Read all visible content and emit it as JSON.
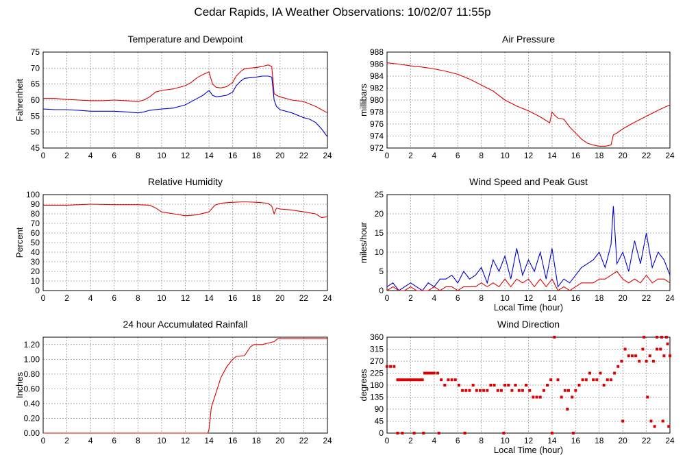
{
  "page_title": "Cedar Rapids, IA Weather Observations: 10/02/07 11:55p",
  "chart_data": [
    {
      "id": "temp",
      "type": "line",
      "title": "Temperature and Dewpoint",
      "xlabel": "",
      "ylabel": "Fahrenheit",
      "xlim": [
        0,
        24
      ],
      "ylim": [
        45,
        75
      ],
      "xticks": [
        0,
        2,
        4,
        6,
        8,
        10,
        12,
        14,
        16,
        18,
        20,
        22,
        24
      ],
      "yticks": [
        45,
        50,
        55,
        60,
        65,
        70,
        75
      ],
      "ytick_labels": [
        "45",
        "50",
        "55",
        "60",
        "65",
        "70",
        "75"
      ],
      "grid": true,
      "series": [
        {
          "color": "#dd0000",
          "x": [
            0,
            1,
            2,
            3,
            4,
            5,
            6,
            7,
            8,
            8.5,
            9,
            9.5,
            10,
            11,
            12,
            12.5,
            13,
            13.5,
            14,
            14.3,
            14.6,
            15,
            15.5,
            16,
            16.3,
            16.7,
            17,
            17.5,
            18,
            18.5,
            19,
            19.3,
            19.5,
            19.7,
            20,
            21,
            22,
            23,
            24
          ],
          "y": [
            60.5,
            60.5,
            60.2,
            60,
            59.8,
            59.8,
            60,
            59.8,
            59.5,
            60,
            61,
            62.5,
            63,
            63.5,
            64.5,
            65.5,
            67,
            68,
            68.8,
            65,
            64,
            63.8,
            64.2,
            65.5,
            67.5,
            69,
            69.8,
            70,
            70.2,
            70.5,
            71,
            70.5,
            62,
            61.5,
            61,
            60,
            59.5,
            58,
            56
          ]
        },
        {
          "color": "#0000cc",
          "x": [
            0,
            1,
            2,
            3,
            4,
            5,
            6,
            7,
            8,
            8.5,
            9,
            10,
            11,
            12,
            12.5,
            13,
            13.5,
            14,
            14.3,
            14.6,
            15,
            15.5,
            16,
            16.3,
            16.7,
            17,
            17.5,
            18,
            18.5,
            19,
            19.3,
            19.5,
            19.7,
            20,
            21,
            22,
            22.5,
            23,
            23.5,
            24
          ],
          "y": [
            57.2,
            57,
            57,
            56.8,
            56.5,
            56.5,
            56.5,
            56.3,
            56,
            56.3,
            56.8,
            57.2,
            57.5,
            58.5,
            59.5,
            60.5,
            61.5,
            63,
            61.5,
            61,
            61.2,
            61.5,
            62.5,
            64.5,
            66,
            66.8,
            67,
            67.2,
            67.5,
            67.5,
            67.2,
            60,
            58,
            57,
            56,
            54.5,
            54,
            53,
            51,
            48.5
          ]
        }
      ]
    },
    {
      "id": "pressure",
      "type": "line",
      "title": "Air Pressure",
      "xlabel": "",
      "ylabel": "millibars",
      "xlim": [
        0,
        24
      ],
      "ylim": [
        972,
        988
      ],
      "xticks": [
        0,
        2,
        4,
        6,
        8,
        10,
        12,
        14,
        16,
        18,
        20,
        22,
        24
      ],
      "yticks": [
        972,
        974,
        976,
        978,
        980,
        982,
        984,
        986,
        988
      ],
      "ytick_labels": [
        "972",
        "974",
        "976",
        "978",
        "980",
        "982",
        "984",
        "986",
        "988"
      ],
      "grid": true,
      "series": [
        {
          "color": "#dd0000",
          "x": [
            0,
            1,
            2,
            3,
            4,
            5,
            6,
            7,
            8,
            9,
            10,
            11,
            12,
            13,
            13.8,
            14,
            14.2,
            14.5,
            15,
            15.5,
            16,
            16.5,
            17,
            17.5,
            18,
            18.5,
            19,
            19.2,
            19.5,
            20,
            21,
            22,
            23,
            24
          ],
          "y": [
            986.2,
            986,
            985.7,
            985.5,
            985.2,
            984.8,
            984.3,
            983.5,
            982.5,
            981.5,
            980,
            979,
            978.2,
            977.2,
            976.2,
            978,
            977.5,
            977,
            976.8,
            975.5,
            974.5,
            973.5,
            972.8,
            972.5,
            972.3,
            972.3,
            972.5,
            974.2,
            974.5,
            975.2,
            976.3,
            977.3,
            978.3,
            979.2
          ]
        }
      ]
    },
    {
      "id": "rh",
      "type": "line",
      "title": "Relative Humidity",
      "xlabel": "",
      "ylabel": "Percent",
      "xlim": [
        0,
        24
      ],
      "ylim": [
        0,
        100
      ],
      "xticks": [
        0,
        2,
        4,
        6,
        8,
        10,
        12,
        14,
        16,
        18,
        20,
        22,
        24
      ],
      "yticks": [
        0,
        10,
        20,
        30,
        40,
        50,
        60,
        70,
        80,
        90,
        100
      ],
      "ytick_labels": [
        "0",
        "10",
        "20",
        "30",
        "40",
        "50",
        "60",
        "70",
        "80",
        "90",
        "100"
      ],
      "grid": true,
      "series": [
        {
          "color": "#dd0000",
          "x": [
            0,
            2,
            4,
            6,
            8,
            9,
            9.5,
            10,
            11,
            12,
            13,
            14,
            14.5,
            15,
            16,
            17,
            18,
            19,
            19.3,
            19.5,
            19.7,
            20,
            21,
            22,
            23,
            23.5,
            24
          ],
          "y": [
            89,
            89,
            90,
            89.5,
            89.5,
            89,
            86,
            82,
            80,
            78,
            79,
            82,
            89,
            91,
            92,
            92.5,
            92,
            91,
            88,
            80,
            86,
            85,
            84,
            82,
            80,
            76,
            77
          ]
        }
      ]
    },
    {
      "id": "wind",
      "type": "line",
      "title": "Wind Speed and Peak Gust",
      "xlabel": "Local Time (hour)",
      "ylabel": "miles/hour",
      "xlim": [
        0,
        24
      ],
      "ylim": [
        0,
        25
      ],
      "xticks": [
        0,
        2,
        4,
        6,
        8,
        10,
        12,
        14,
        16,
        18,
        20,
        22,
        24
      ],
      "yticks": [
        0,
        5,
        10,
        15,
        20,
        25
      ],
      "ytick_labels": [
        "0",
        "5",
        "10",
        "15",
        "20",
        "25"
      ],
      "grid": true,
      "series": [
        {
          "color": "#0000cc",
          "x": [
            0,
            0.5,
            1,
            1.5,
            2,
            2.5,
            3,
            3.5,
            4,
            4.5,
            5,
            5.5,
            6,
            6.5,
            7,
            7.5,
            8,
            8.5,
            9,
            9.5,
            10,
            10.5,
            11,
            11.5,
            12,
            12.5,
            13,
            13.5,
            14,
            14.5,
            15,
            15.5,
            16,
            16.5,
            17,
            17.5,
            18,
            18.5,
            19,
            19.2,
            19.5,
            20,
            20.5,
            21,
            21.5,
            22,
            22.5,
            23,
            23.5,
            24
          ],
          "y": [
            1,
            2,
            0,
            1,
            2,
            1,
            0,
            2,
            1,
            3,
            3,
            4,
            2,
            5,
            3,
            4,
            6,
            2,
            8,
            5,
            9,
            3,
            11,
            4,
            8,
            5,
            10,
            3,
            11,
            1,
            3,
            2,
            4,
            6,
            7,
            8,
            10,
            6,
            12,
            22,
            7,
            10,
            5,
            13,
            7,
            15,
            6,
            10,
            8,
            4
          ]
        },
        {
          "color": "#dd0000",
          "x": [
            0,
            0.5,
            1,
            1.5,
            2,
            2.5,
            3,
            3.5,
            4,
            4.5,
            5,
            5.5,
            6,
            6.5,
            7,
            7.5,
            8,
            8.5,
            9,
            9.5,
            10,
            10.5,
            11,
            11.5,
            12,
            12.5,
            13,
            13.5,
            14,
            14.5,
            15,
            15.5,
            16,
            16.5,
            17,
            17.5,
            18,
            18.5,
            19,
            19.5,
            20,
            20.5,
            21,
            21.5,
            22,
            22.5,
            23,
            23.5,
            24
          ],
          "y": [
            0,
            1,
            0,
            0,
            1,
            0,
            0,
            0,
            1,
            0,
            1,
            1,
            0,
            1,
            1,
            1,
            2,
            1,
            2,
            1,
            3,
            1,
            3,
            2,
            3,
            1,
            3,
            1,
            3,
            0,
            1,
            0,
            1,
            2,
            2,
            2,
            3,
            3,
            4,
            5,
            3,
            2,
            3,
            2,
            4,
            2,
            3,
            3,
            2
          ]
        }
      ]
    },
    {
      "id": "rain",
      "type": "line",
      "title": "24 hour Accumulated Rainfall",
      "xlabel": "",
      "ylabel": "Inches",
      "xlim": [
        0,
        24
      ],
      "ylim": [
        0,
        1.3
      ],
      "xticks": [
        0,
        2,
        4,
        6,
        8,
        10,
        12,
        14,
        16,
        18,
        20,
        22,
        24
      ],
      "yticks": [
        0,
        0.2,
        0.4,
        0.6,
        0.8,
        1.0,
        1.2
      ],
      "ytick_labels": [
        "0.00",
        "0.20",
        "0.40",
        "0.60",
        "0.80",
        "1.00",
        "1.20"
      ],
      "grid": true,
      "series": [
        {
          "color": "#dd0000",
          "x": [
            0,
            13.9,
            14.0,
            14.2,
            14.5,
            15,
            15.5,
            16,
            16.3,
            16.5,
            17,
            17.5,
            17.8,
            18,
            18.5,
            19,
            19.5,
            19.8,
            20,
            21,
            22,
            23,
            24
          ],
          "y": [
            0,
            0,
            0.05,
            0.35,
            0.5,
            0.75,
            0.9,
            1.0,
            1.04,
            1.04,
            1.05,
            1.17,
            1.2,
            1.2,
            1.2,
            1.22,
            1.24,
            1.28,
            1.28,
            1.28,
            1.28,
            1.28,
            1.28
          ]
        }
      ]
    },
    {
      "id": "wdir",
      "type": "scatter",
      "title": "Wind Direction",
      "xlabel": "Local Time (hour)",
      "ylabel": "degrees",
      "xlim": [
        0,
        24
      ],
      "ylim": [
        0,
        360
      ],
      "xticks": [
        0,
        2,
        4,
        6,
        8,
        10,
        12,
        14,
        16,
        18,
        20,
        22,
        24
      ],
      "yticks": [
        0,
        45,
        90,
        135,
        180,
        225,
        270,
        315,
        360
      ],
      "ytick_labels": [
        "0",
        "45",
        "90",
        "135",
        "180",
        "225",
        "270",
        "315",
        "360"
      ],
      "grid": true,
      "series": [
        {
          "color": "#dd0000",
          "x": [
            0,
            0.3,
            0.6,
            0.9,
            1.0,
            1.2,
            1.4,
            1.6,
            1.8,
            2.0,
            2.2,
            2.4,
            2.6,
            2.8,
            3.0,
            3.2,
            3.4,
            3.6,
            3.8,
            4.0,
            4.3,
            4.6,
            4.9,
            5.2,
            5.5,
            5.8,
            6.1,
            6.4,
            6.7,
            7.0,
            7.3,
            7.6,
            7.9,
            8.2,
            8.5,
            8.8,
            9.1,
            9.4,
            9.7,
            10.0,
            10.3,
            10.6,
            10.9,
            11.2,
            11.5,
            11.8,
            12.1,
            12.4,
            12.7,
            13.0,
            13.3,
            13.6,
            13.9,
            14.2,
            14.5,
            14.8,
            15.1,
            15.4,
            15.7,
            16.0,
            16.3,
            16.6,
            16.9,
            17.2,
            17.5,
            17.8,
            18.1,
            18.4,
            18.7,
            19.0,
            19.3,
            19.6,
            19.9,
            20.2,
            20.5,
            20.8,
            21.1,
            21.4,
            21.7,
            22.0,
            22.3,
            22.6,
            22.9,
            23.2,
            23.5,
            23.8,
            24.0,
            0.9,
            1.3,
            2.3,
            3.1,
            4.4,
            6.6,
            9.9,
            14.0,
            15.3,
            15.8,
            20.0,
            22.1,
            22.4,
            22.7,
            23.4,
            23.9,
            21.8,
            22.9,
            23.3,
            23.7
          ],
          "y": [
            250,
            250,
            250,
            200,
            200,
            200,
            200,
            200,
            200,
            200,
            200,
            200,
            200,
            200,
            200,
            225,
            225,
            225,
            225,
            225,
            225,
            200,
            180,
            200,
            200,
            200,
            180,
            160,
            160,
            160,
            180,
            160,
            160,
            160,
            160,
            180,
            180,
            160,
            160,
            180,
            180,
            160,
            180,
            160,
            160,
            180,
            160,
            135,
            135,
            135,
            160,
            180,
            200,
            370,
            200,
            135,
            160,
            160,
            135,
            160,
            180,
            200,
            200,
            225,
            200,
            200,
            225,
            180,
            200,
            200,
            225,
            250,
            270,
            315,
            290,
            290,
            290,
            270,
            315,
            270,
            290,
            270,
            315,
            315,
            290,
            335,
            290,
            0,
            0,
            0,
            0,
            0,
            0,
            0,
            0,
            90,
            0,
            45,
            135,
            45,
            25,
            45,
            25,
            370,
            370,
            370,
            370
          ]
        }
      ]
    }
  ]
}
